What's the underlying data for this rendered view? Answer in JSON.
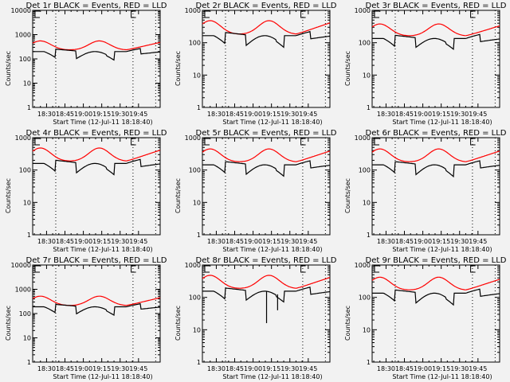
{
  "chart_data": [
    {
      "type": "line",
      "title": "Det 1r BLACK = Events, RED = LLD",
      "detector": "1r",
      "ylim": [
        1,
        10000
      ],
      "yscale": "log",
      "ylabel": "Counts/sec",
      "xlabel": "Start Time (12-Jul-11 18:18:40)",
      "x_ticks": [
        "18:30",
        "18:45",
        "19:00",
        "19:15",
        "19:30",
        "19:45"
      ],
      "y_ticks": [
        "1",
        "10",
        "100",
        "1000",
        "10000"
      ],
      "series": [
        {
          "name": "Events",
          "color": "#000000",
          "baseline": "black"
        },
        {
          "name": "LLD",
          "color": "#ff0000",
          "baseline": "red"
        }
      ],
      "levels": {
        "red_peak": 550,
        "red_low": 230,
        "black_high": 200,
        "black_low": 100
      }
    },
    {
      "type": "line",
      "title": "Det 2r BLACK = Events, RED = LLD",
      "detector": "2r",
      "ylim": [
        1,
        1000
      ],
      "yscale": "log",
      "ylabel": "Counts/sec",
      "xlabel": "Start Time (12-Jul-11 18:18:40)",
      "x_ticks": [
        "18:30",
        "18:45",
        "19:00",
        "19:15",
        "19:30",
        "19:45"
      ],
      "y_ticks": [
        "1",
        "10",
        "100",
        "1000"
      ],
      "series": [
        {
          "name": "Events",
          "color": "#000000"
        },
        {
          "name": "LLD",
          "color": "#ff0000"
        }
      ],
      "levels": {
        "red_peak": 480,
        "red_low": 180,
        "black_high": 165,
        "black_low": 80
      }
    },
    {
      "type": "line",
      "title": "Det 3r BLACK = Events, RED = LLD",
      "detector": "3r",
      "ylim": [
        1,
        1000
      ],
      "yscale": "log",
      "ylabel": "Counts/sec",
      "xlabel": "Start Time (12-Jul-11 18:18:40)",
      "x_ticks": [
        "18:30",
        "18:45",
        "19:00",
        "19:15",
        "19:30",
        "19:45"
      ],
      "y_ticks": [
        "1",
        "10",
        "100",
        "1000"
      ],
      "series": [
        {
          "name": "Events",
          "color": "#000000"
        },
        {
          "name": "LLD",
          "color": "#ff0000"
        }
      ],
      "levels": {
        "red_peak": 380,
        "red_low": 160,
        "black_high": 135,
        "black_low": 70
      }
    },
    {
      "type": "line",
      "title": "Det 4r BLACK = Events, RED = LLD",
      "detector": "4r",
      "ylim": [
        1,
        1000
      ],
      "yscale": "log",
      "ylabel": "Counts/sec",
      "xlabel": "Start Time (12-Jul-11 18:18:40)",
      "x_ticks": [
        "18:30",
        "18:45",
        "19:00",
        "19:15",
        "19:30",
        "19:45"
      ],
      "y_ticks": [
        "1",
        "10",
        "100",
        "1000"
      ],
      "series": [
        {
          "name": "Events",
          "color": "#000000"
        },
        {
          "name": "LLD",
          "color": "#ff0000"
        }
      ],
      "levels": {
        "red_peak": 480,
        "red_low": 185,
        "black_high": 160,
        "black_low": 80
      }
    },
    {
      "type": "line",
      "title": "Det 5r BLACK = Events, RED = LLD",
      "detector": "5r",
      "ylim": [
        1,
        1000
      ],
      "yscale": "log",
      "ylabel": "Counts/sec",
      "xlabel": "Start Time (12-Jul-11 18:18:40)",
      "x_ticks": [
        "18:30",
        "18:45",
        "19:00",
        "19:15",
        "19:30",
        "19:45"
      ],
      "y_ticks": [
        "1",
        "10",
        "100",
        "1000"
      ],
      "series": [
        {
          "name": "Events",
          "color": "#000000"
        },
        {
          "name": "LLD",
          "color": "#ff0000"
        }
      ],
      "levels": {
        "red_peak": 450,
        "red_low": 175,
        "black_high": 145,
        "black_low": 72
      }
    },
    {
      "type": "line",
      "title": "Det 6r BLACK = Events, RED = LLD",
      "detector": "6r",
      "ylim": [
        1,
        1000
      ],
      "yscale": "log",
      "ylabel": "Counts/sec",
      "xlabel": "Start Time (12-Jul-11 18:18:40)",
      "x_ticks": [
        "18:30",
        "18:45",
        "19:00",
        "19:15",
        "19:30",
        "19:45"
      ],
      "y_ticks": [
        "1",
        "10",
        "100",
        "1000"
      ],
      "series": [
        {
          "name": "Events",
          "color": "#000000"
        },
        {
          "name": "LLD",
          "color": "#ff0000"
        }
      ],
      "levels": {
        "red_peak": 450,
        "red_low": 175,
        "black_high": 145,
        "black_low": 70
      }
    },
    {
      "type": "line",
      "title": "Det 7r BLACK = Events, RED = LLD",
      "detector": "7r",
      "ylim": [
        1,
        10000
      ],
      "yscale": "log",
      "ylabel": "Counts/sec",
      "xlabel": "Start Time (12-Jul-11 18:18:40)",
      "x_ticks": [
        "18:30",
        "18:45",
        "19:00",
        "19:15",
        "19:30",
        "19:45"
      ],
      "y_ticks": [
        "1",
        "10",
        "100",
        "1000",
        "10000"
      ],
      "series": [
        {
          "name": "Events",
          "color": "#000000"
        },
        {
          "name": "LLD",
          "color": "#ff0000"
        }
      ],
      "levels": {
        "red_peak": 520,
        "red_low": 210,
        "black_high": 190,
        "black_low": 95
      }
    },
    {
      "type": "line",
      "title": "Det 8r BLACK = Events, RED = LLD",
      "detector": "8r",
      "ylim": [
        1,
        1000
      ],
      "yscale": "log",
      "ylabel": "Counts/sec",
      "xlabel": "Start Time (12-Jul-11 18:18:40)",
      "x_ticks": [
        "18:30",
        "18:45",
        "19:00",
        "19:15",
        "19:30",
        "19:45"
      ],
      "y_ticks": [
        "1",
        "10",
        "100",
        "1000"
      ],
      "series": [
        {
          "name": "Events",
          "color": "#000000"
        },
        {
          "name": "LLD",
          "color": "#ff0000"
        }
      ],
      "levels": {
        "red_peak": 480,
        "red_low": 185,
        "black_high": 155,
        "black_low": 80
      },
      "dropouts": [
        16,
        40
      ]
    },
    {
      "type": "line",
      "title": "Det 9r BLACK = Events, RED = LLD",
      "detector": "9r",
      "ylim": [
        1,
        1000
      ],
      "yscale": "log",
      "ylabel": "Counts/sec",
      "xlabel": "Start Time (12-Jul-11 18:18:40)",
      "x_ticks": [
        "18:30",
        "18:45",
        "19:00",
        "19:15",
        "19:30",
        "19:45"
      ],
      "y_ticks": [
        "1",
        "10",
        "100",
        "1000"
      ],
      "series": [
        {
          "name": "Events",
          "color": "#000000"
        },
        {
          "name": "LLD",
          "color": "#ff0000"
        }
      ],
      "levels": {
        "red_peak": 420,
        "red_low": 165,
        "black_high": 135,
        "black_low": 65
      }
    }
  ],
  "time_axis": {
    "start_min": 18.67,
    "span_min": 104,
    "tick_minutes": [
      30,
      45,
      60,
      75,
      90,
      105
    ],
    "dotted_minutes": [
      37.5,
      101.5,
      120
    ]
  }
}
